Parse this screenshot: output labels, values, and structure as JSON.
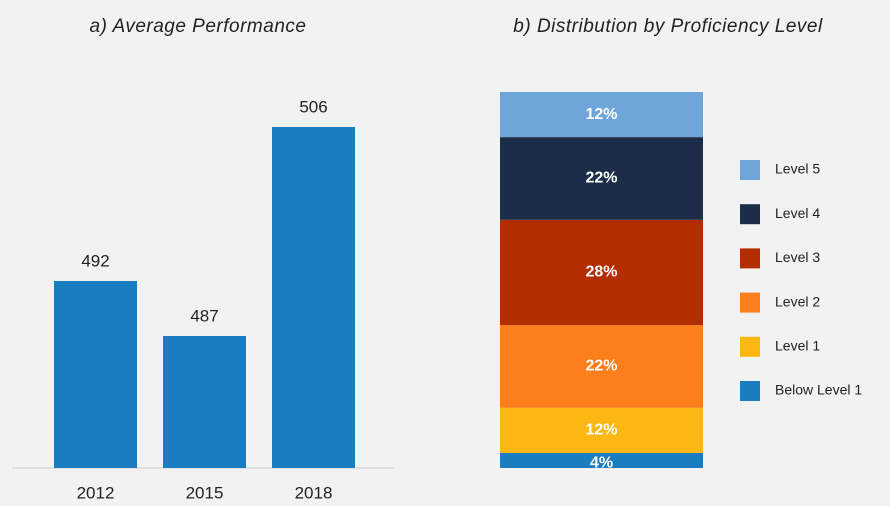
{
  "chart_data": [
    {
      "type": "bar",
      "title": "a) Average Performance",
      "categories": [
        "2012",
        "2015",
        "2018"
      ],
      "values": [
        492,
        487,
        506
      ],
      "color": "#1a7dc0",
      "ylim": [
        475,
        512
      ]
    },
    {
      "type": "stacked_bar",
      "title": "b) Distribution by Proficiency Level",
      "ylim": [
        0,
        100
      ],
      "series": [
        {
          "name": "Below Level 1",
          "color": "#1a7dc0",
          "values": [
            4
          ],
          "value_labels": [
            "4%"
          ]
        },
        {
          "name": "Level 1",
          "color": "#fdb713",
          "values": [
            12
          ],
          "value_labels": [
            "12%"
          ]
        },
        {
          "name": "Level 2",
          "color": "#fd7f1b",
          "values": [
            22
          ],
          "value_labels": [
            "22%"
          ]
        },
        {
          "name": "Level 3",
          "color": "#b22d00",
          "values": [
            28
          ],
          "value_labels": [
            "28%"
          ]
        },
        {
          "name": "Level 4",
          "color": "#1c2d48",
          "values": [
            22
          ],
          "value_labels": [
            "22%"
          ]
        },
        {
          "name": "Level 5",
          "color": "#6ea6d9",
          "values": [
            12
          ],
          "value_labels": [
            "12%"
          ]
        }
      ]
    }
  ]
}
